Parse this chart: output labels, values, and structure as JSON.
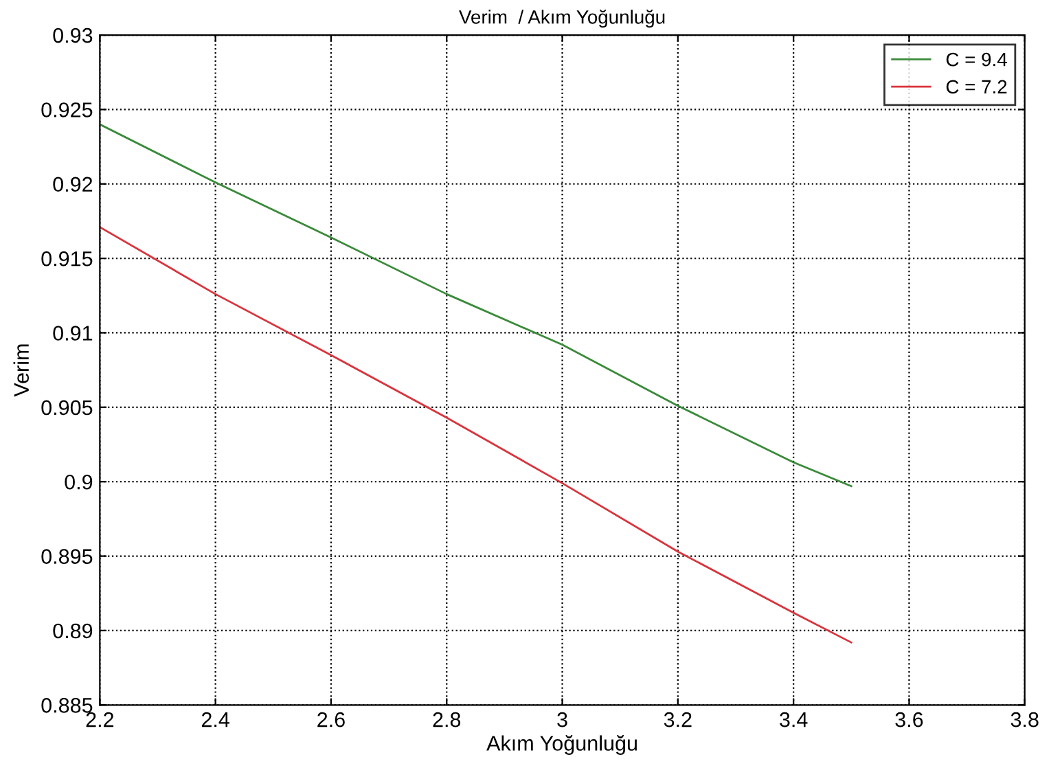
{
  "chart_data": {
    "type": "line",
    "title": "Verim  / Akım Yoğunluğu",
    "xlabel": "Akım Yoğunluğu",
    "ylabel": "Verim",
    "x": [
      2.2,
      2.4,
      2.6,
      2.8,
      3.0,
      3.2,
      3.4,
      3.5
    ],
    "series": [
      {
        "name": "C = 9.4",
        "color": "#3a8a3a",
        "values": [
          0.924,
          0.9201,
          0.9164,
          0.9126,
          0.9092,
          0.9051,
          0.9013,
          0.8997
        ]
      },
      {
        "name": "C = 7.2",
        "color": "#d9343c",
        "values": [
          0.9171,
          0.9126,
          0.9085,
          0.9043,
          0.8999,
          0.8953,
          0.8912,
          0.8892
        ]
      }
    ],
    "xlim": [
      2.2,
      3.8
    ],
    "xticks": [
      2.2,
      2.4,
      2.6,
      2.8,
      3,
      3.2,
      3.4,
      3.6,
      3.8
    ],
    "ylim": [
      0.885,
      0.93
    ],
    "yticks": [
      0.885,
      0.89,
      0.895,
      0.9,
      0.905,
      0.91,
      0.915,
      0.92,
      0.925,
      0.93
    ],
    "grid": true,
    "legend": "top right",
    "marker": "none",
    "line_style": "solid"
  }
}
